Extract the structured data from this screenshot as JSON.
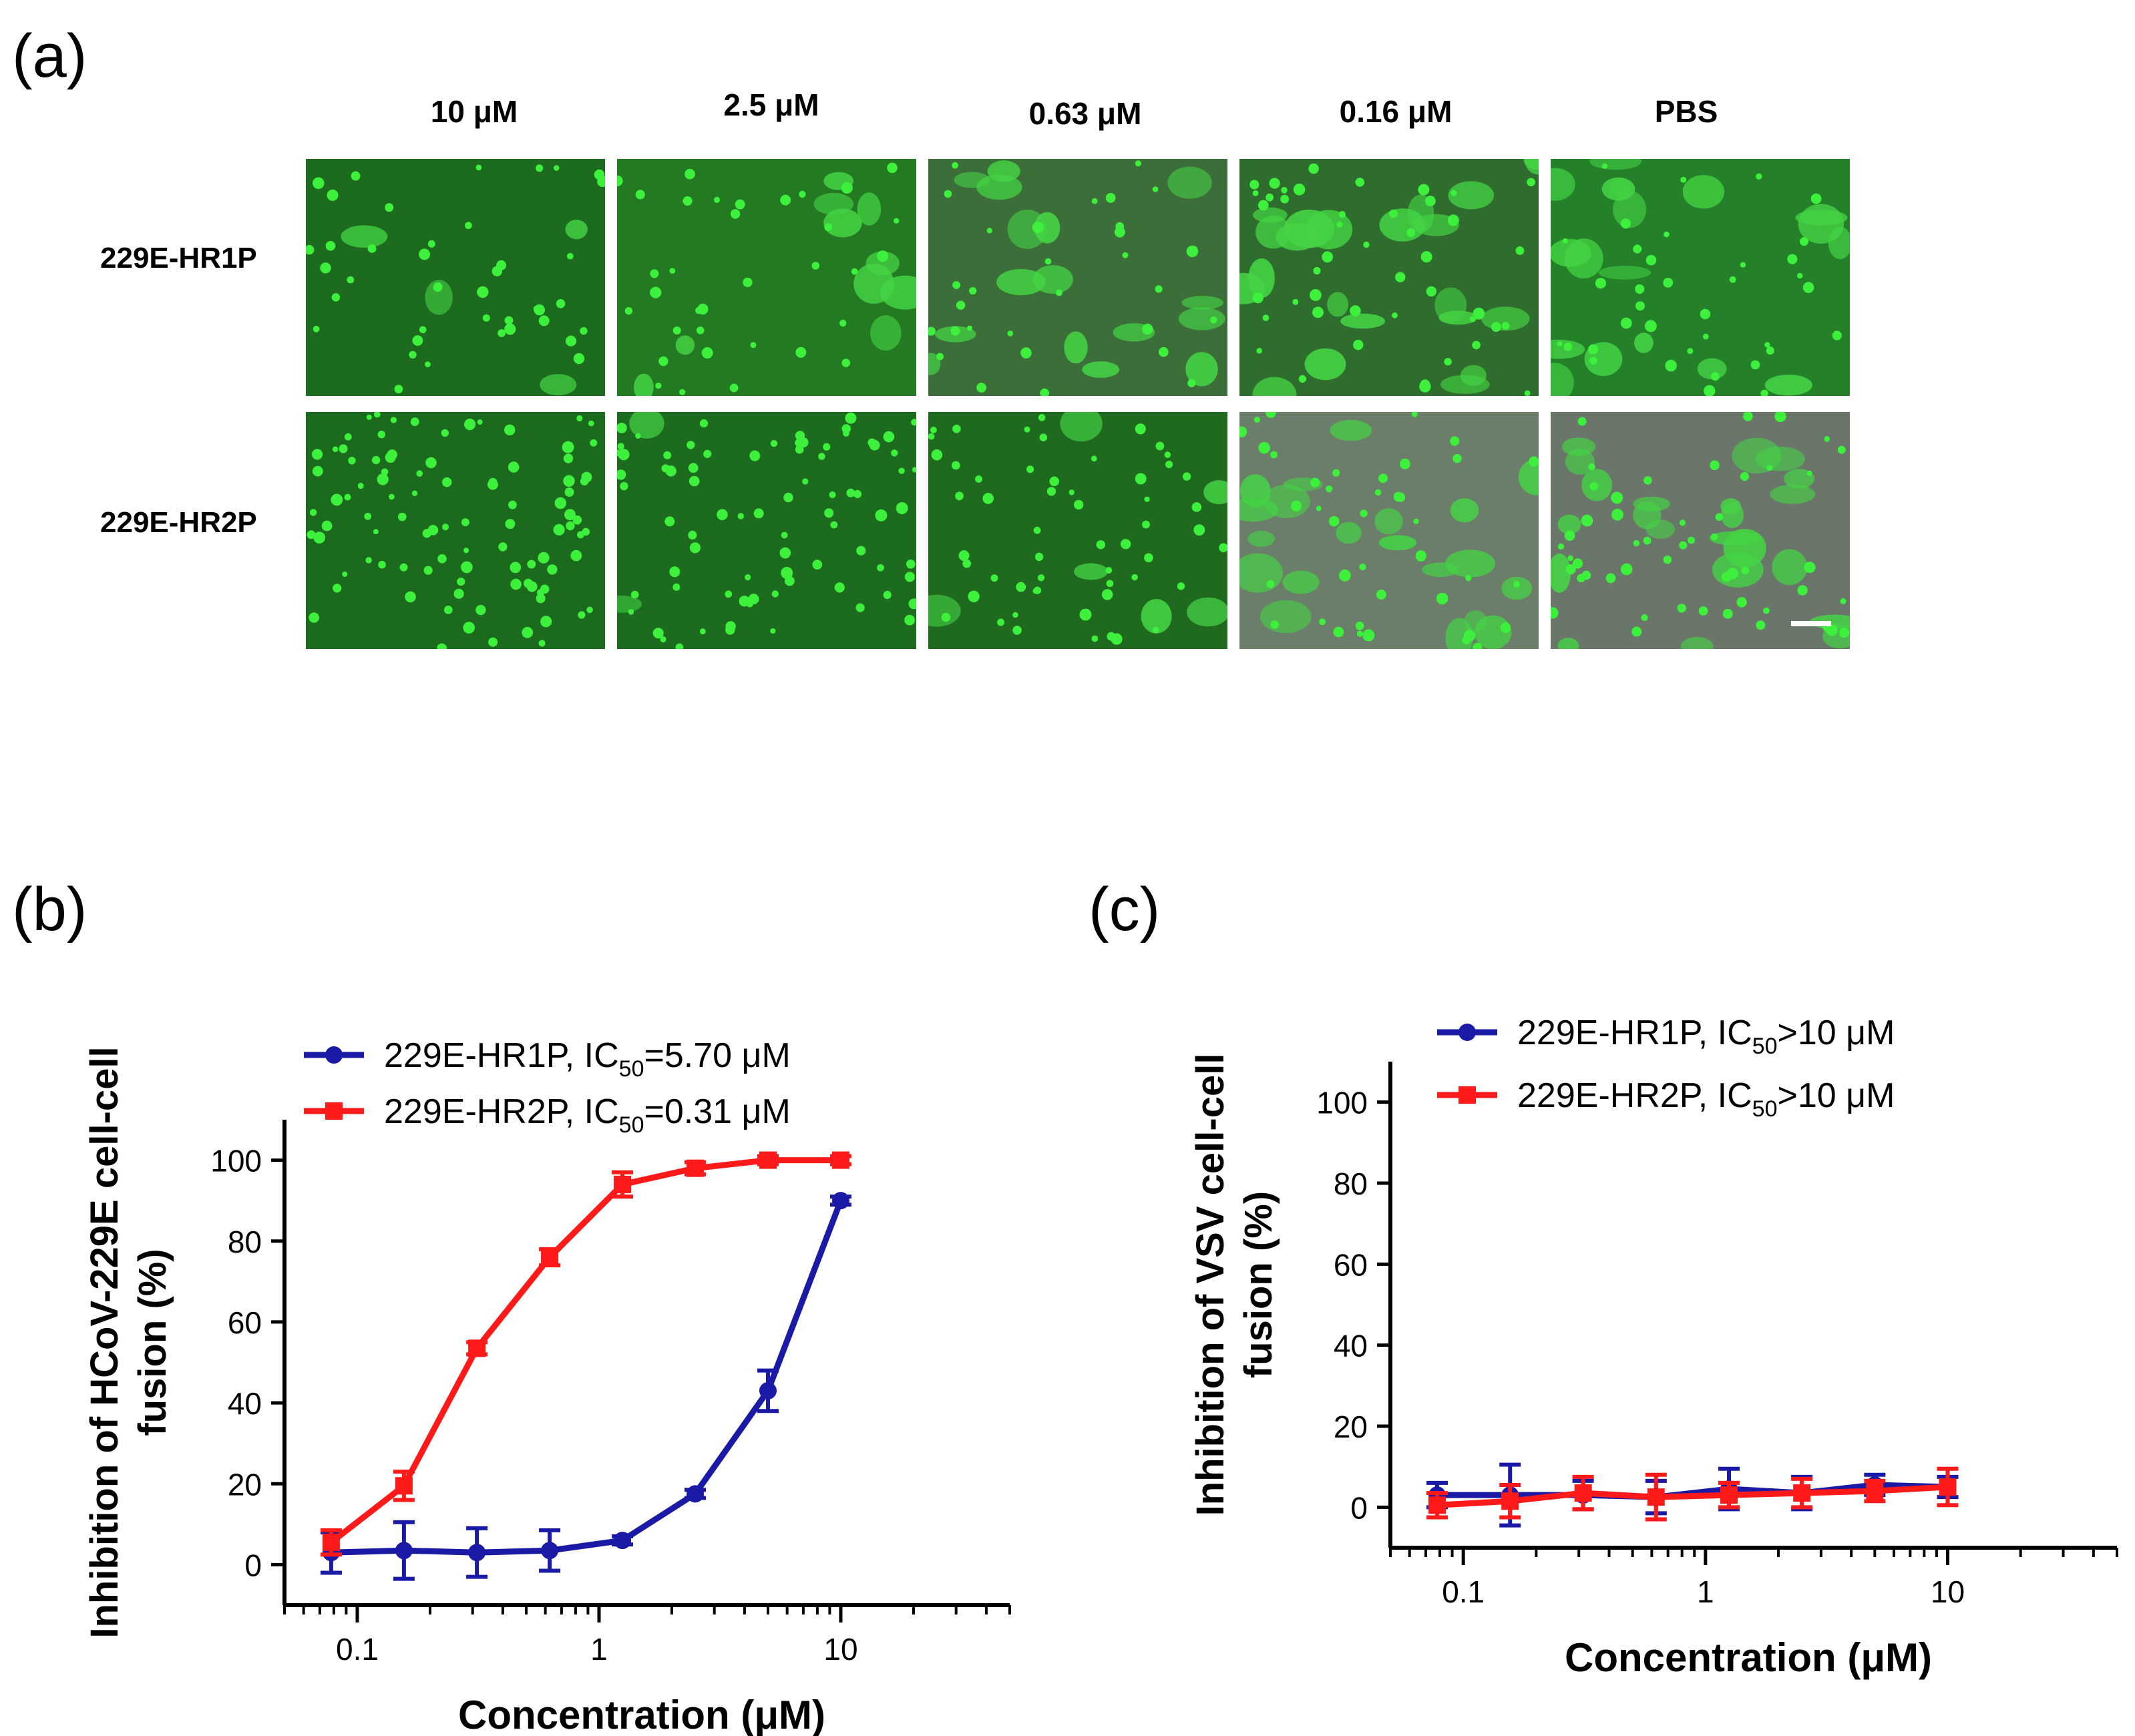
{
  "panels": {
    "a": {
      "label": "(a)",
      "columns": [
        "10 μM",
        "2.5 μM",
        "0.63 μM",
        "0.16 μM",
        "PBS"
      ],
      "rows": [
        "229E-HR1P",
        "229E-HR2P"
      ],
      "micrographs": [
        [
          {
            "name": "hr1p-10uM",
            "bg": "#1d6b1e",
            "cells": 40,
            "blobs": 4,
            "seed": 11
          },
          {
            "name": "hr1p-2.5uM",
            "bg": "#237a22",
            "cells": 34,
            "blobs": 10,
            "seed": 12
          },
          {
            "name": "hr1p-0.63uM",
            "bg": "#3c6e3a",
            "cells": 30,
            "blobs": 16,
            "seed": 13
          },
          {
            "name": "hr1p-0.16uM",
            "bg": "#2f6d2e",
            "cells": 45,
            "blobs": 22,
            "seed": 14
          },
          {
            "name": "hr1p-PBS",
            "bg": "#25802a",
            "cells": 36,
            "blobs": 18,
            "seed": 15
          }
        ],
        [
          {
            "name": "hr2p-10uM",
            "bg": "#1c6a1d",
            "cells": 95,
            "blobs": 0,
            "seed": 21
          },
          {
            "name": "hr2p-2.5uM",
            "bg": "#1d6b1e",
            "cells": 80,
            "blobs": 2,
            "seed": 22
          },
          {
            "name": "hr2p-0.63uM",
            "bg": "#206a20",
            "cells": 55,
            "blobs": 6,
            "seed": 23
          },
          {
            "name": "hr2p-0.16uM",
            "bg": "#6b7e6a",
            "cells": 40,
            "blobs": 20,
            "seed": 24
          },
          {
            "name": "hr2p-PBS",
            "bg": "#6a7669",
            "cells": 50,
            "blobs": 22,
            "seed": 25
          }
        ]
      ]
    },
    "b": {
      "label": "(b)"
    },
    "c": {
      "label": "(c)"
    }
  },
  "colors": {
    "hr1p": "#1a1aa6",
    "hr2p": "#ff1a1a",
    "axis": "#000000",
    "cell": "#3cf03c"
  },
  "chart_data": [
    {
      "id": "b",
      "type": "line",
      "xscale": "log",
      "xlim": [
        0.05,
        50
      ],
      "ylim": [
        -10,
        110
      ],
      "xticks": [
        0.1,
        1,
        10
      ],
      "xticklabels": [
        "0.1",
        "1",
        "10"
      ],
      "yticks": [
        0,
        20,
        40,
        60,
        80,
        100
      ],
      "yticklabels": [
        "0",
        "20",
        "40",
        "60",
        "80",
        "100"
      ],
      "xlabel": "Concentration (μM)",
      "ylabel_line1": "Inhibition of HCoV-229E cell-cell",
      "ylabel_line2": "fusion (%)",
      "legend": "top-left",
      "series": [
        {
          "name": "229E-HR1P, IC",
          "sub": "50",
          "tail": "=5.70 μM",
          "color": "#1a1aa6",
          "marker": "circle",
          "x": [
            0.078,
            0.156,
            0.3125,
            0.625,
            1.25,
            2.5,
            5,
            10
          ],
          "y": [
            3,
            3.5,
            3,
            3.5,
            6,
            17.5,
            43,
            90
          ],
          "err": [
            5,
            7,
            6,
            5,
            1,
            1,
            5,
            1
          ]
        },
        {
          "name": "229E-HR2P, IC",
          "sub": "50",
          "tail": "=0.31 μM",
          "color": "#ff1a1a",
          "marker": "square",
          "x": [
            0.078,
            0.156,
            0.3125,
            0.625,
            1.25,
            2.5,
            5,
            10
          ],
          "y": [
            5.5,
            19.5,
            53.5,
            76,
            94,
            98,
            100,
            100
          ],
          "err": [
            3,
            3.5,
            1.5,
            2,
            3,
            1.5,
            1,
            1
          ]
        }
      ]
    },
    {
      "id": "c",
      "type": "line",
      "xscale": "log",
      "xlim": [
        0.05,
        50
      ],
      "ylim": [
        -10,
        110
      ],
      "xticks": [
        0.1,
        1,
        10
      ],
      "xticklabels": [
        "0.1",
        "1",
        "10"
      ],
      "yticks": [
        0,
        20,
        40,
        60,
        80,
        100
      ],
      "yticklabels": [
        "0",
        "20",
        "40",
        "60",
        "80",
        "100"
      ],
      "xlabel": "Concentration (μM)",
      "ylabel_line1": "Inhibition of VSV cell-cell",
      "ylabel_line2": "fusion (%)",
      "legend": "top-left",
      "series": [
        {
          "name": "229E-HR1P, IC",
          "sub": "50",
          "tail": ">10 μM",
          "color": "#1a1aa6",
          "marker": "circle",
          "x": [
            0.078,
            0.156,
            0.3125,
            0.625,
            1.25,
            2.5,
            5,
            10
          ],
          "y": [
            3,
            3,
            3,
            2.5,
            4.5,
            3.5,
            5.5,
            5
          ],
          "err": [
            3,
            7.5,
            3.5,
            4,
            5,
            4,
            2.5,
            2.5
          ]
        },
        {
          "name": "229E-HR2P, IC",
          "sub": "50",
          "tail": ">10 μM",
          "color": "#ff1a1a",
          "marker": "square",
          "x": [
            0.078,
            0.156,
            0.3125,
            0.625,
            1.25,
            2.5,
            5,
            10
          ],
          "y": [
            0.5,
            1.5,
            3.5,
            2.5,
            3,
            3.5,
            4,
            5
          ],
          "err": [
            3,
            4,
            4,
            5.5,
            3,
            3.5,
            2.5,
            4.5
          ]
        }
      ]
    }
  ]
}
